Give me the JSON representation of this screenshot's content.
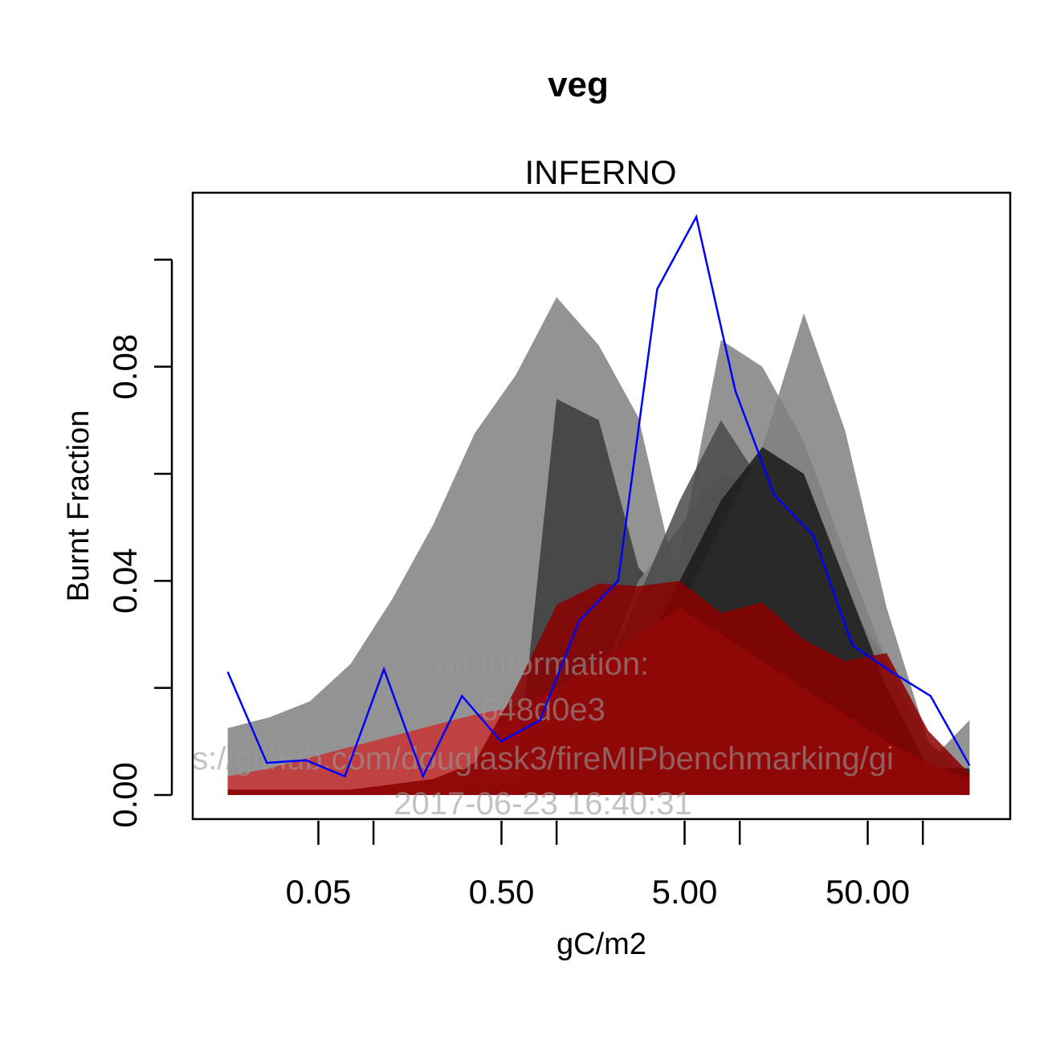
{
  "chart_data": {
    "type": "area",
    "title": "veg",
    "subtitle": "INFERNO",
    "xlabel": "gC/m2",
    "ylabel": "Burnt Fraction",
    "x_scale": "log10",
    "xlim": [
      0.0103,
      300
    ],
    "ylim": [
      -0.0045,
      0.1125
    ],
    "x_tick_labels": [
      "0.05",
      "0.50",
      "5.00",
      "50.00"
    ],
    "x_tick_values": [
      0.05,
      0.5,
      5,
      50
    ],
    "x_minor_ticks": [
      0.1,
      1,
      10,
      100
    ],
    "y_ticks": [
      0,
      0.02,
      0.04,
      0.06,
      0.08,
      0.1
    ],
    "y_tick_labels": [
      "0.00",
      "",
      "0.04",
      "",
      "0.08",
      ""
    ],
    "grid": false,
    "x": [
      0.016,
      0.027,
      0.045,
      0.075,
      0.126,
      0.212,
      0.356,
      0.6,
      1.0,
      1.7,
      2.8,
      4.7,
      7.9,
      13.3,
      22.4,
      37.7,
      63.4,
      107,
      180
    ],
    "series": [
      {
        "color": "#808080",
        "values": [
          0.0125,
          0.0145,
          0.0175,
          0.0245,
          0.0365,
          0.0505,
          0.0675,
          0.0785,
          0.093,
          0.084,
          0.0705,
          0.0375,
          0.039,
          0.0345,
          0.026,
          0.015,
          0.008,
          0.003,
          0.001
        ]
      },
      {
        "color": "#3b3b3b",
        "values": [
          0.001,
          0.001,
          0.001,
          0.001,
          0.001,
          0.001,
          0.001,
          0.002,
          0.074,
          0.07,
          0.0425,
          0.034,
          0.026,
          0.02,
          0.015,
          0.01,
          0.007,
          0.004,
          0.002
        ]
      },
      {
        "color": "#808080",
        "values": [
          0.001,
          0.001,
          0.001,
          0.001,
          0.001,
          0.001,
          0.002,
          0.005,
          0.01,
          0.02,
          0.04,
          0.05,
          0.06,
          0.057,
          0.047,
          0.035,
          0.015,
          0.006,
          0.014
        ]
      },
      {
        "color": "#808080",
        "values": [
          0.0005,
          0.0005,
          0.0005,
          0.0005,
          0.0005,
          0.0005,
          0.001,
          0.002,
          0.005,
          0.015,
          0.03,
          0.045,
          0.085,
          0.08,
          0.066,
          0.045,
          0.025,
          0.01,
          0.002
        ]
      },
      {
        "color": "#4a4a4a",
        "values": [
          0.0005,
          0.0005,
          0.0005,
          0.0005,
          0.0005,
          0.0005,
          0.001,
          0.003,
          0.008,
          0.02,
          0.037,
          0.055,
          0.07,
          0.058,
          0.048,
          0.037,
          0.025,
          0.008,
          0.003
        ]
      },
      {
        "color": "#808080",
        "values": [
          0.0005,
          0.0005,
          0.0005,
          0.0005,
          0.0005,
          0.0005,
          0.001,
          0.002,
          0.005,
          0.01,
          0.02,
          0.035,
          0.05,
          0.065,
          0.09,
          0.068,
          0.035,
          0.01,
          0.003
        ]
      },
      {
        "color": "#1a1a1a",
        "values": [
          0.0005,
          0.0005,
          0.0005,
          0.0005,
          0.0005,
          0.0005,
          0.001,
          0.002,
          0.005,
          0.01,
          0.025,
          0.04,
          0.055,
          0.065,
          0.06,
          0.04,
          0.02,
          0.005,
          0.005
        ]
      },
      {
        "color": "#c83232",
        "values": [
          0.0035,
          0.005,
          0.007,
          0.009,
          0.011,
          0.013,
          0.015,
          0.0165,
          0.02,
          0.025,
          0.03,
          0.035,
          0.03,
          0.025,
          0.02,
          0.015,
          0.01,
          0.006,
          0.003
        ]
      },
      {
        "color": "#8b0000",
        "values": [
          0.001,
          0.001,
          0.001,
          0.001,
          0.002,
          0.003,
          0.006,
          0.02,
          0.0355,
          0.0395,
          0.039,
          0.04,
          0.034,
          0.036,
          0.029,
          0.025,
          0.0265,
          0.012,
          0.004
        ]
      }
    ],
    "line_series": {
      "color": "#0000ff",
      "values": [
        0.023,
        0.006,
        0.0065,
        0.0035,
        0.0235,
        0.0035,
        0.0185,
        0.01,
        0.014,
        0.0325,
        0.04,
        0.0945,
        0.108,
        0.0755,
        0.056,
        0.0485,
        0.028,
        0.023,
        0.0185,
        0.0055
      ],
      "x": [
        0.016,
        0.027,
        0.045,
        0.075,
        0.126,
        0.212,
        0.356,
        0.6,
        1.0,
        1.7,
        2.8,
        4.7,
        7.9,
        13.3,
        22.4,
        37.7,
        63.4,
        107,
        180,
        180
      ]
    },
    "watermark": {
      "lines": [
        "git Information:",
        "648d0e3",
        "s://github.com/douglask3/fireMIPbenchmarking/gi",
        "2017-06-23 16:40:31"
      ]
    }
  }
}
